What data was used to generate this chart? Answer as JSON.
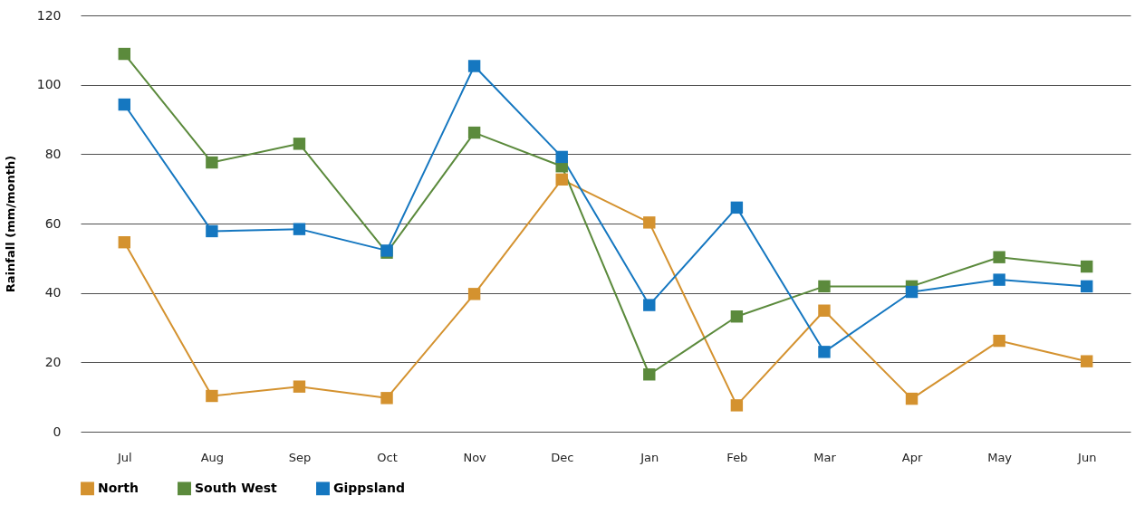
{
  "chart_data": {
    "type": "line",
    "ylabel": "Rainfall (mm/month)",
    "categories": [
      "Jul",
      "Aug",
      "Sep",
      "Oct",
      "Nov",
      "Dec",
      "Jan",
      "Feb",
      "Mar",
      "Apr",
      "May",
      "Jun"
    ],
    "series": [
      {
        "name": "North",
        "color": "#d4922f",
        "values": [
          54.6,
          10.3,
          13,
          9.7,
          39.7,
          72.7,
          60.3,
          7.6,
          34.9,
          9.5,
          26.2,
          20.3
        ]
      },
      {
        "name": "South West",
        "color": "#5b8a3c",
        "values": [
          108.9,
          77.6,
          83,
          51.6,
          86.2,
          76.5,
          16.5,
          33.2,
          41.9,
          41.9,
          50.3,
          47.6
        ]
      },
      {
        "name": "Gippsland",
        "color": "#1577c0",
        "values": [
          94.3,
          57.8,
          58.4,
          52.2,
          105.4,
          79.2,
          36.5,
          64.6,
          23,
          40.3,
          43.8,
          41.9
        ]
      }
    ],
    "ylim": [
      0,
      120
    ],
    "yticks": [
      0,
      20,
      40,
      60,
      80,
      100,
      120
    ],
    "grid": "y",
    "legend": "bottom",
    "marker": "square",
    "line_style": "solid"
  }
}
